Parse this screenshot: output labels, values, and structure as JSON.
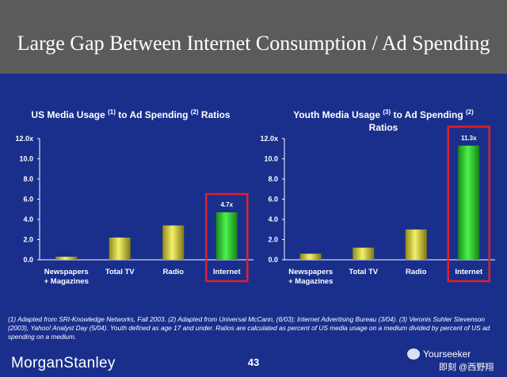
{
  "slide": {
    "title": "Large Gap Between Internet Consumption / Ad Spending",
    "footnote": "(1) Adapted from SRI-Knowledge Networks, Fall 2003.  (2) Adapted from Universal McCann, (6/03); Internet Advertising Bureau (3/04). (3) Veronis Suhler Stevenson (2003), Yahoo! Analyst Day (5/04).  Youth defined as age 17 and under.  Ratios are calculated as percent of US media usage on a medium divided by percent of US ad spending on a medium.",
    "logo": "MorganStanley",
    "page_number": "43",
    "watermark_name": "Yourseeker",
    "watermark_sub": "即刻 @西野翔"
  },
  "charts": [
    {
      "title_a": "US Media Usage ",
      "sup1": "(1)",
      "title_b": " to Ad Spending ",
      "sup2": "(2)",
      "title_c": " Ratios"
    },
    {
      "title_a": "Youth Media Usage ",
      "sup1": "(3)",
      "title_b": " to Ad Spending ",
      "sup2": "(2)",
      "title_c": " Ratios"
    }
  ],
  "chart_data": [
    {
      "type": "bar",
      "title": "US Media Usage (1) to Ad Spending (2) Ratios",
      "categories": [
        "Newspapers + Magazines",
        "Total TV",
        "Radio",
        "Internet"
      ],
      "values": [
        0.3,
        2.2,
        3.4,
        4.7
      ],
      "data_labels": [
        "",
        "",
        "",
        "4.7x"
      ],
      "ylim": [
        0,
        12
      ],
      "yticks": [
        "0.0",
        "2.0",
        "4.0",
        "6.0",
        "8.0",
        "10.0",
        "12.0x"
      ],
      "highlight_category": "Internet",
      "colors": {
        "bar": "#e6e04a",
        "highlight_bar": "#2ee02e",
        "highlight_box": "#e0202a"
      }
    },
    {
      "type": "bar",
      "title": "Youth Media Usage (3) to Ad Spending (2) Ratios",
      "categories": [
        "Newspapers + Magazines",
        "Total TV",
        "Radio",
        "Internet"
      ],
      "values": [
        0.6,
        1.2,
        3.0,
        11.3
      ],
      "data_labels": [
        "",
        "",
        "",
        "11.3x"
      ],
      "ylim": [
        0,
        12
      ],
      "yticks": [
        "0.0",
        "2.0",
        "4.0",
        "6.0",
        "8.0",
        "10.0",
        "12.0x"
      ],
      "highlight_category": "Internet",
      "colors": {
        "bar": "#e6e04a",
        "highlight_bar": "#2ee02e",
        "highlight_box": "#e0202a"
      }
    }
  ]
}
